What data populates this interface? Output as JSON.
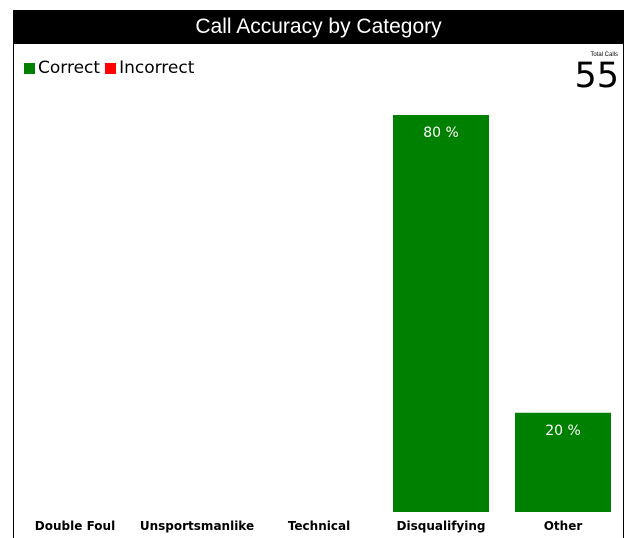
{
  "chart_data": {
    "type": "bar",
    "title": "Call Accuracy by Category",
    "categories": [
      "Double Foul",
      "Unsportsmanlike",
      "Technical",
      "Disqualifying",
      "Other"
    ],
    "series": [
      {
        "name": "Correct",
        "color": "#008000",
        "values": [
          0,
          0,
          0,
          80,
          20
        ],
        "labels": [
          "",
          "",
          "",
          "80 %",
          "20 %"
        ]
      },
      {
        "name": "Incorrect",
        "color": "#ff0000",
        "values": [
          0,
          0,
          0,
          0,
          0
        ],
        "labels": [
          "",
          "",
          "",
          "",
          ""
        ]
      }
    ],
    "ylim": [
      0,
      80
    ],
    "grid": false,
    "legend_position": "top-left"
  },
  "total": {
    "label": "Total Calls",
    "value": "55"
  }
}
